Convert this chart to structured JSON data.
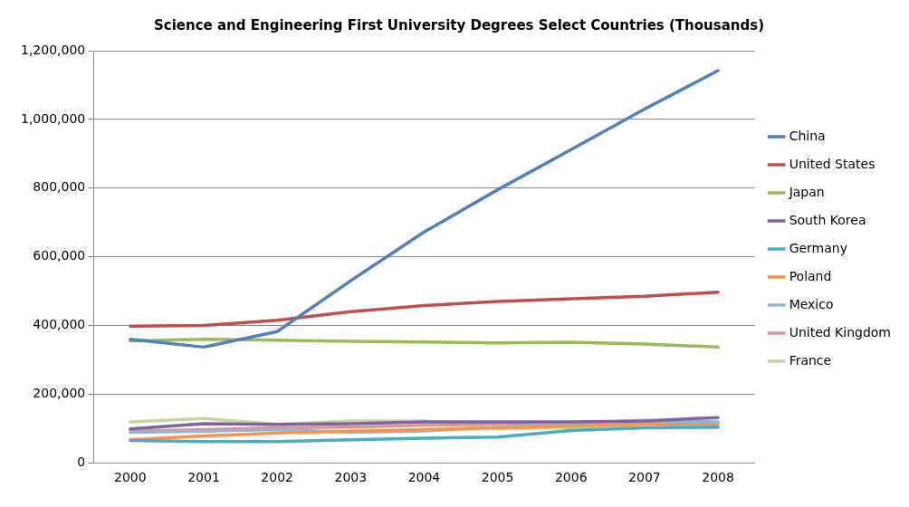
{
  "chart_data": {
    "type": "line",
    "title": "Science and Engineering First University Degrees Select Countries (Thousands)",
    "categories": [
      "2000",
      "2001",
      "2002",
      "2003",
      "2004",
      "2005",
      "2006",
      "2007",
      "2008"
    ],
    "series": [
      {
        "name": "China",
        "color": "#4f81bd",
        "values": [
          360000,
          337000,
          382000,
          530000,
          672000,
          795000,
          912000,
          1030000,
          1142000
        ]
      },
      {
        "name": "United States",
        "color": "#c0504d",
        "values": [
          398000,
          400000,
          415000,
          440000,
          458000,
          470000,
          478000,
          485000,
          497000
        ]
      },
      {
        "name": "Japan",
        "color": "#9bbb59",
        "values": [
          355000,
          360000,
          357000,
          354000,
          352000,
          349000,
          351000,
          346000,
          337000
        ]
      },
      {
        "name": "South Korea",
        "color": "#8064a2",
        "values": [
          99000,
          114000,
          112000,
          114000,
          119000,
          119000,
          119000,
          122000,
          132000
        ]
      },
      {
        "name": "Germany",
        "color": "#4bacc6",
        "values": [
          65000,
          62000,
          62000,
          67000,
          72000,
          75000,
          94000,
          102000,
          104000
        ]
      },
      {
        "name": "Poland",
        "color": "#f79646",
        "values": [
          67000,
          78000,
          87000,
          92000,
          97000,
          102000,
          107000,
          112000,
          112000
        ]
      },
      {
        "name": "Mexico",
        "color": "#95b3d7",
        "values": [
          89000,
          92000,
          97000,
          89000,
          93000,
          104000,
          114000,
          124000,
          119000
        ]
      },
      {
        "name": "United Kingdom",
        "color": "#d99694",
        "values": [
          92000,
          97000,
          102000,
          104000,
          109000,
          114000,
          114000,
          117000,
          117000
        ]
      },
      {
        "name": "France",
        "color": "#c3d69b",
        "values": [
          119000,
          129000,
          112000,
          122000,
          122000,
          99000,
          102000,
          102000,
          102000
        ]
      }
    ],
    "ylim": [
      0,
      1200000
    ],
    "yticks": [
      0,
      {
        "value": 200000,
        "label": "200,000"
      },
      {
        "value": 400000,
        "label": "400,000"
      },
      {
        "value": 600000,
        "label": "600,000"
      },
      {
        "value": 800000,
        "label": "800,000"
      },
      {
        "value": 1000000,
        "label": "1,000,000"
      },
      {
        "value": 1200000,
        "label": "1,200,000"
      }
    ],
    "grid": "y",
    "legend": "right",
    "marker": "none",
    "line_style": "solid"
  }
}
